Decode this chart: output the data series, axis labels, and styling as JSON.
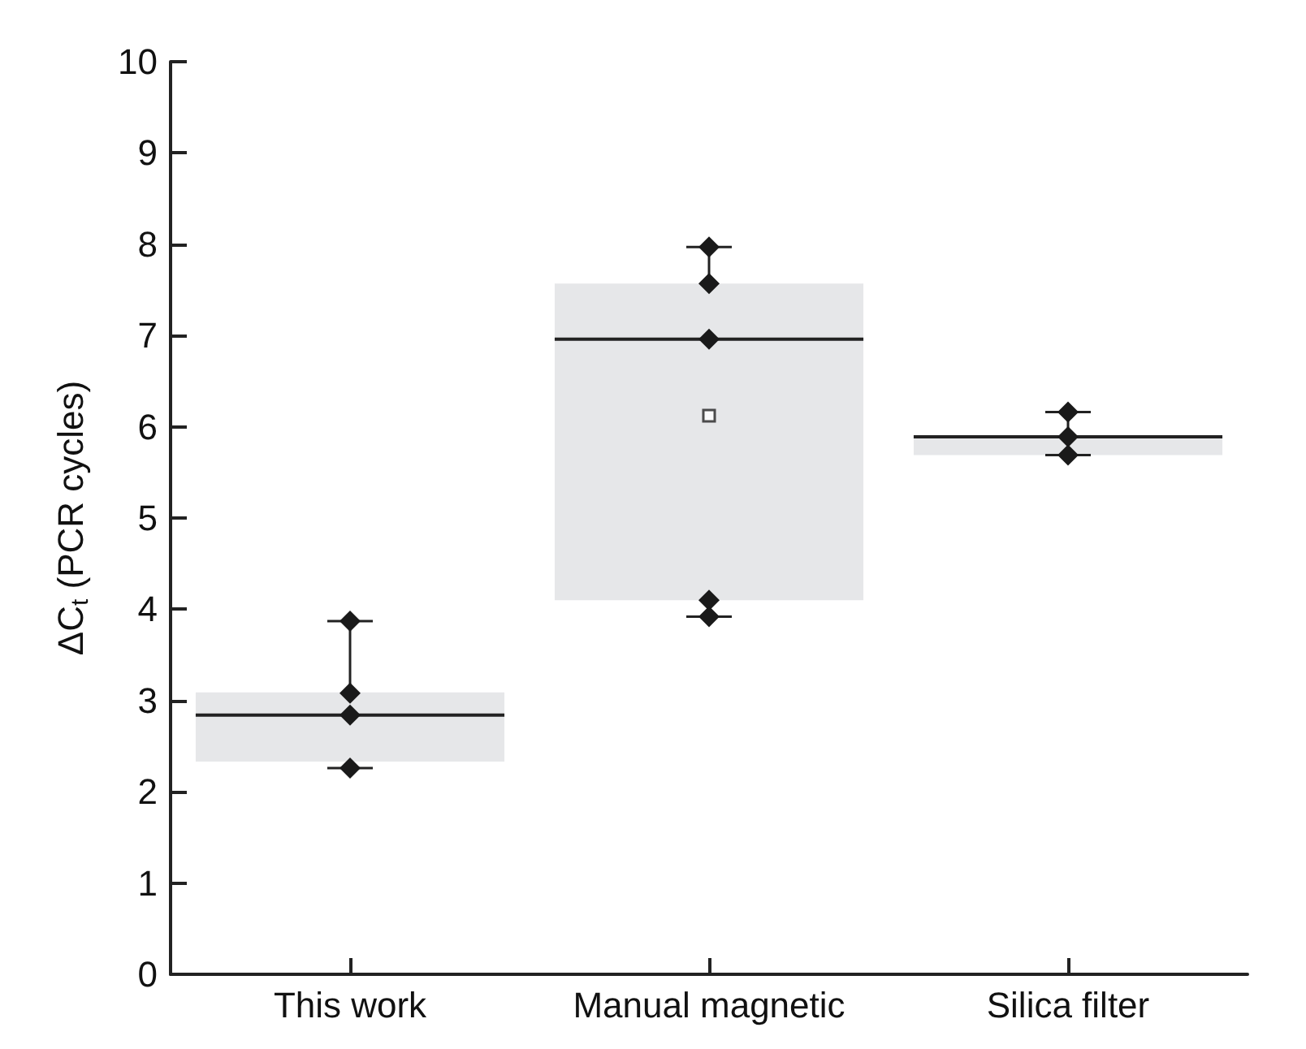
{
  "chart_data": {
    "type": "box",
    "ylabel": "ΔC$_{t}$ (PCR cycles)",
    "categories": [
      "This work",
      "Manual magnetic",
      "Silica filter"
    ],
    "ylim": [
      0,
      10
    ],
    "yticks": [
      0,
      1,
      2,
      3,
      4,
      5,
      6,
      7,
      8,
      9,
      10
    ],
    "grid": false,
    "color": "#e6e7e9",
    "boxes": [
      {
        "low": 2.26,
        "q1": 2.33,
        "median": 2.84,
        "q3": 3.09,
        "high": 3.87
      },
      {
        "low": 3.92,
        "q1": 4.1,
        "median": 6.96,
        "q3": 7.57,
        "high": 7.97,
        "mean": 6.12
      },
      {
        "low": 5.69,
        "q1": 5.69,
        "median": 5.89,
        "q3": 5.89,
        "high": 6.16
      }
    ],
    "series": [
      {
        "type": "scatter",
        "marker": "diamond",
        "color": "#1a1a1a",
        "x": [
          "This work",
          "This work",
          "This work",
          "This work",
          "This work",
          "Manual magnetic",
          "Manual magnetic",
          "Manual magnetic",
          "Manual magnetic",
          "Manual magnetic",
          "Silica filter",
          "Silica filter",
          "Silica filter"
        ],
        "values": [
          3.87,
          3.08,
          2.84,
          null,
          2.26,
          7.97,
          7.57,
          6.96,
          4.1,
          3.92,
          6.16,
          5.89,
          5.69
        ]
      }
    ]
  }
}
